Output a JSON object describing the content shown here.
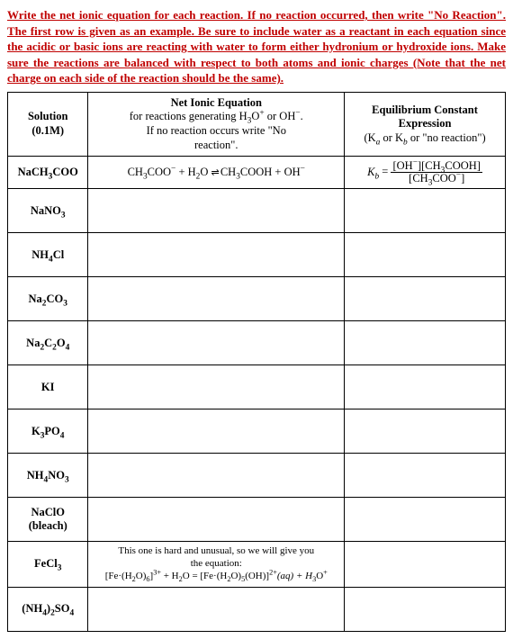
{
  "instructions": "Write the net ionic equation for each reaction. If no reaction occurred, then write \"No Reaction\". The first row is given as an example. Be sure to include water as a reactant in each equation since the acidic or basic ions are reacting with water to form either hydronium or hydroxide ions. Make sure the reactions are balanced with respect to both atoms and ionic charges (Note that the net charge on each side of the reaction should be the same).",
  "headers": {
    "solution_line1": "Solution",
    "solution_line2": "(0.1M)",
    "equation_line1": "Net Ionic Equation",
    "equation_line2_a": "for reactions generating H",
    "equation_line2_b": "O",
    "equation_line2_c": " or OH",
    "equation_line2_d": ".",
    "equation_line3": "If no reaction occurs write \"No",
    "equation_line4": "reaction\".",
    "expr_line1": "Equilibrium Constant",
    "expr_line2": "Expression",
    "expr_line3_a": "(K",
    "expr_line3_b": " or K",
    "expr_line3_c": " or \"no reaction\")"
  },
  "example": {
    "sol_a": "NaCH",
    "sol_b": "COO",
    "eq_a": "CH",
    "eq_b": "COO",
    "eq_c": " + H",
    "eq_d": "O ",
    "eq_e": " CH",
    "eq_f": "COOH + OH",
    "ex_a": "K",
    "ex_b": " = ",
    "num_a": "[OH",
    "num_b": "][CH",
    "num_c": "COOH]",
    "den_a": "[CH",
    "den_b": "COO",
    "den_c": "]"
  },
  "rows": {
    "r1": "NaNO",
    "r2a": "NH",
    "r2b": "Cl",
    "r3a": "Na",
    "r3b": "CO",
    "r4a": "Na",
    "r4b": "C",
    "r4c": "O",
    "r5": "KI",
    "r6a": "K",
    "r6b": "PO",
    "r7a": "NH",
    "r7b": "NO",
    "r8a": "NaClO",
    "r8b": "(bleach)",
    "r9": "FeCl",
    "r9note1": "This one is hard and unusual, so we will give you",
    "r9note2": "the equation:",
    "r9eq_a": "[Fe·(H",
    "r9eq_b": "O)",
    "r9eq_c": "]",
    "r9eq_d": " + H",
    "r9eq_e": "O = [Fe·(H",
    "r9eq_f": "O)",
    "r9eq_g": "(OH)]",
    "r9eq_h": "(aq) + H",
    "r9eq_i": "O",
    "r10a": "(NH",
    "r10b": ")",
    "r10c": "SO"
  },
  "sym": {
    "sub3": "3",
    "sub2": "2",
    "sub4": "4",
    "sub5": "5",
    "sub6": "6",
    "supplus": "+",
    "supminus": "−",
    "sup3plus": "3+",
    "sup2plus": "2+",
    "sub_a": "a",
    "sub_b": "b",
    "equil": "⇌",
    "italic_b": "b"
  }
}
